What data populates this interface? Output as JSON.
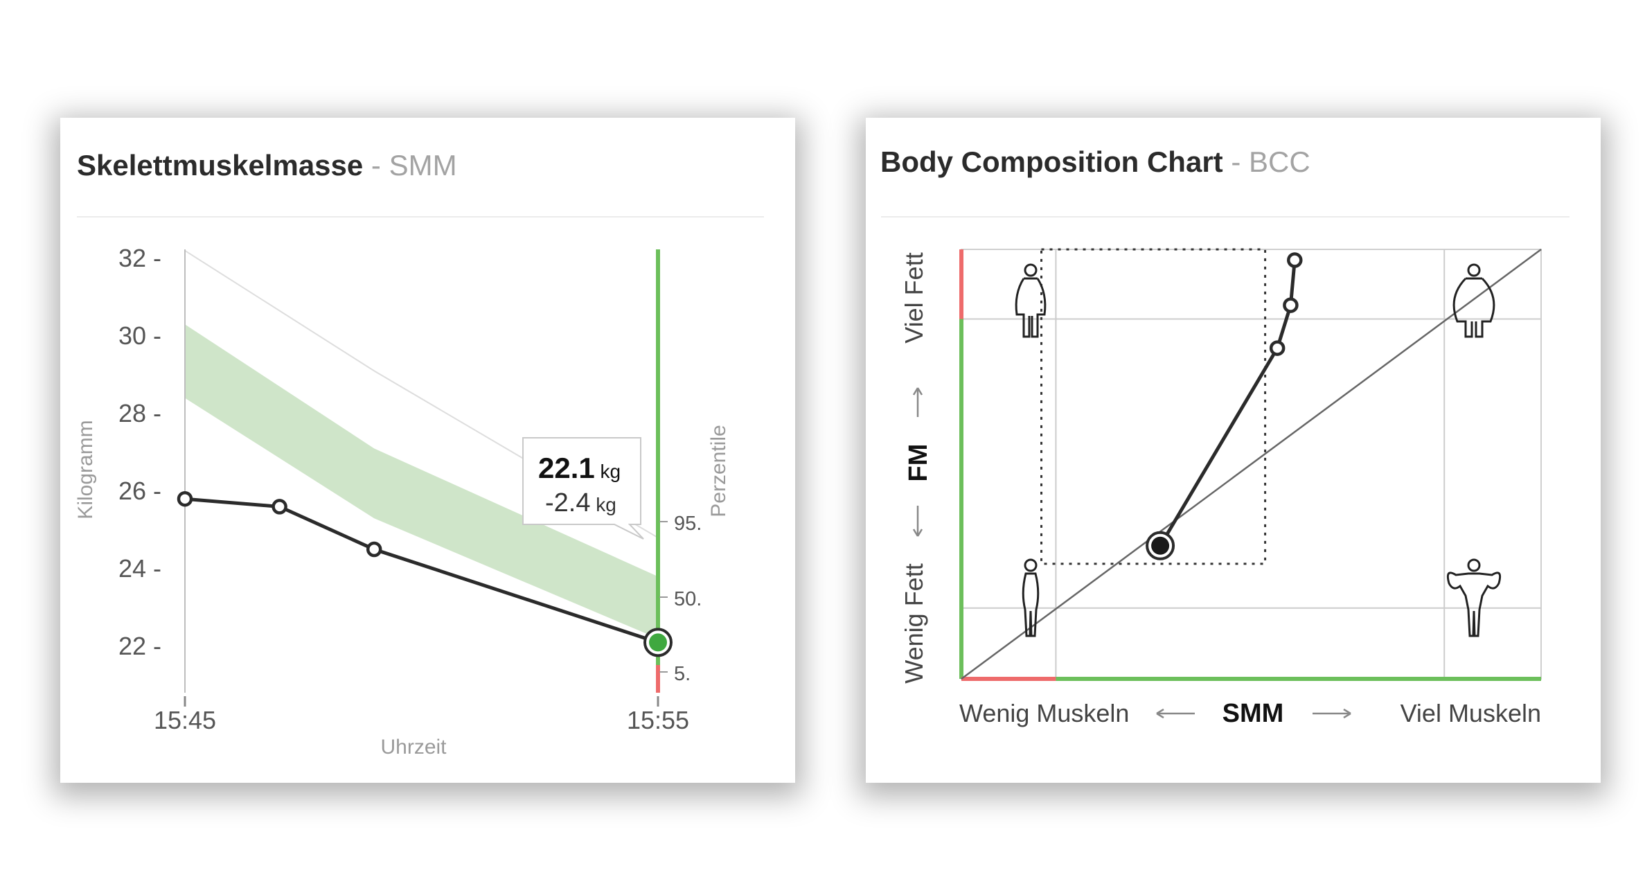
{
  "smm_card": {
    "title": "Skelettmuskelmasse",
    "title_separator": " - ",
    "subtitle": "SMM"
  },
  "bcc_card": {
    "title": "Body Composition Chart",
    "title_separator": " - ",
    "subtitle": "BCC"
  },
  "tooltip": {
    "value": "22.1",
    "value_unit": "kg",
    "delta": "-2.4",
    "delta_unit": "kg"
  },
  "chart_data": [
    {
      "type": "line",
      "title": "Skelettmuskelmasse - SMM",
      "xlabel": "Uhrzeit",
      "ylabel": "Kilogramm",
      "y2label": "Perzentile",
      "x_ticks": [
        "15:45",
        "15:55"
      ],
      "y_ticks": [
        22,
        24,
        26,
        28,
        30,
        32
      ],
      "ylim": [
        21.5,
        33
      ],
      "x": [
        0,
        2,
        4,
        10
      ],
      "series": [
        {
          "values": [
            25.8,
            25.6,
            24.5,
            22.1
          ]
        }
      ],
      "percentile_band": {
        "x": [
          0,
          4,
          10
        ],
        "upper": [
          30.3,
          27.1,
          23.8
        ],
        "lower": [
          28.4,
          25.3,
          22.2
        ]
      },
      "upper_reference_line": {
        "x": [
          0,
          4,
          10
        ],
        "values": [
          32.2,
          29.1,
          24.8
        ]
      },
      "percentile_labels": [
        "95.",
        "50.",
        "5."
      ],
      "current_value": 22.1,
      "delta": -2.4,
      "colors": {
        "band": "#cfe5c9",
        "line": "#2b2b2b",
        "current_point": "#3fa83f",
        "good": "#6cbf5b",
        "bad": "#ee6b6b"
      }
    },
    {
      "type": "scatter",
      "title": "Body Composition Chart - BCC",
      "xlabel": "SMM",
      "ylabel": "FM",
      "x_left_label": "Wenig Muskeln",
      "x_right_label": "Viel Muskeln",
      "y_top_label": "Viel Fett",
      "y_bottom_label": "Wenig Fett",
      "quadrant_icons": [
        "female-figure-icon",
        "obese-figure-icon",
        "slim-figure-icon",
        "muscular-figure-icon"
      ],
      "x": [
        0.575,
        0.568,
        0.545,
        0.343
      ],
      "y": [
        0.975,
        0.87,
        0.77,
        0.31
      ],
      "current_point": {
        "x": 0.343,
        "y": 0.31
      },
      "colors": {
        "line": "#2b2b2b",
        "grid": "#cccccc",
        "good": "#6cbf5b",
        "bad": "#ee6b6b"
      }
    }
  ]
}
